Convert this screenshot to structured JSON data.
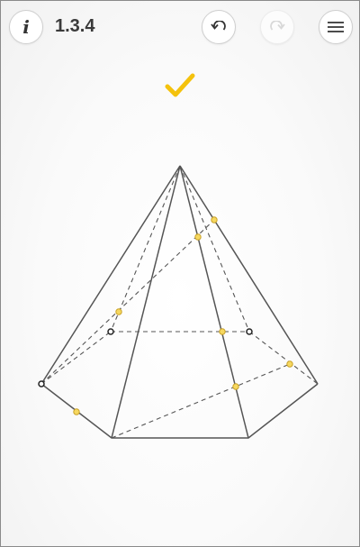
{
  "header": {
    "info_icon": "info-icon",
    "info_glyph": "i",
    "level": "1.3.4",
    "undo_icon": "undo-icon",
    "redo_icon": "redo-icon",
    "menu_icon": "menu-icon"
  },
  "status": {
    "solved_icon": "checkmark-icon",
    "color": "#f4c20d"
  },
  "colors": {
    "edge": "#555555",
    "point_fill": "#f6d860",
    "point_stroke": "#c9a227",
    "vertex_stroke": "#222222"
  }
}
